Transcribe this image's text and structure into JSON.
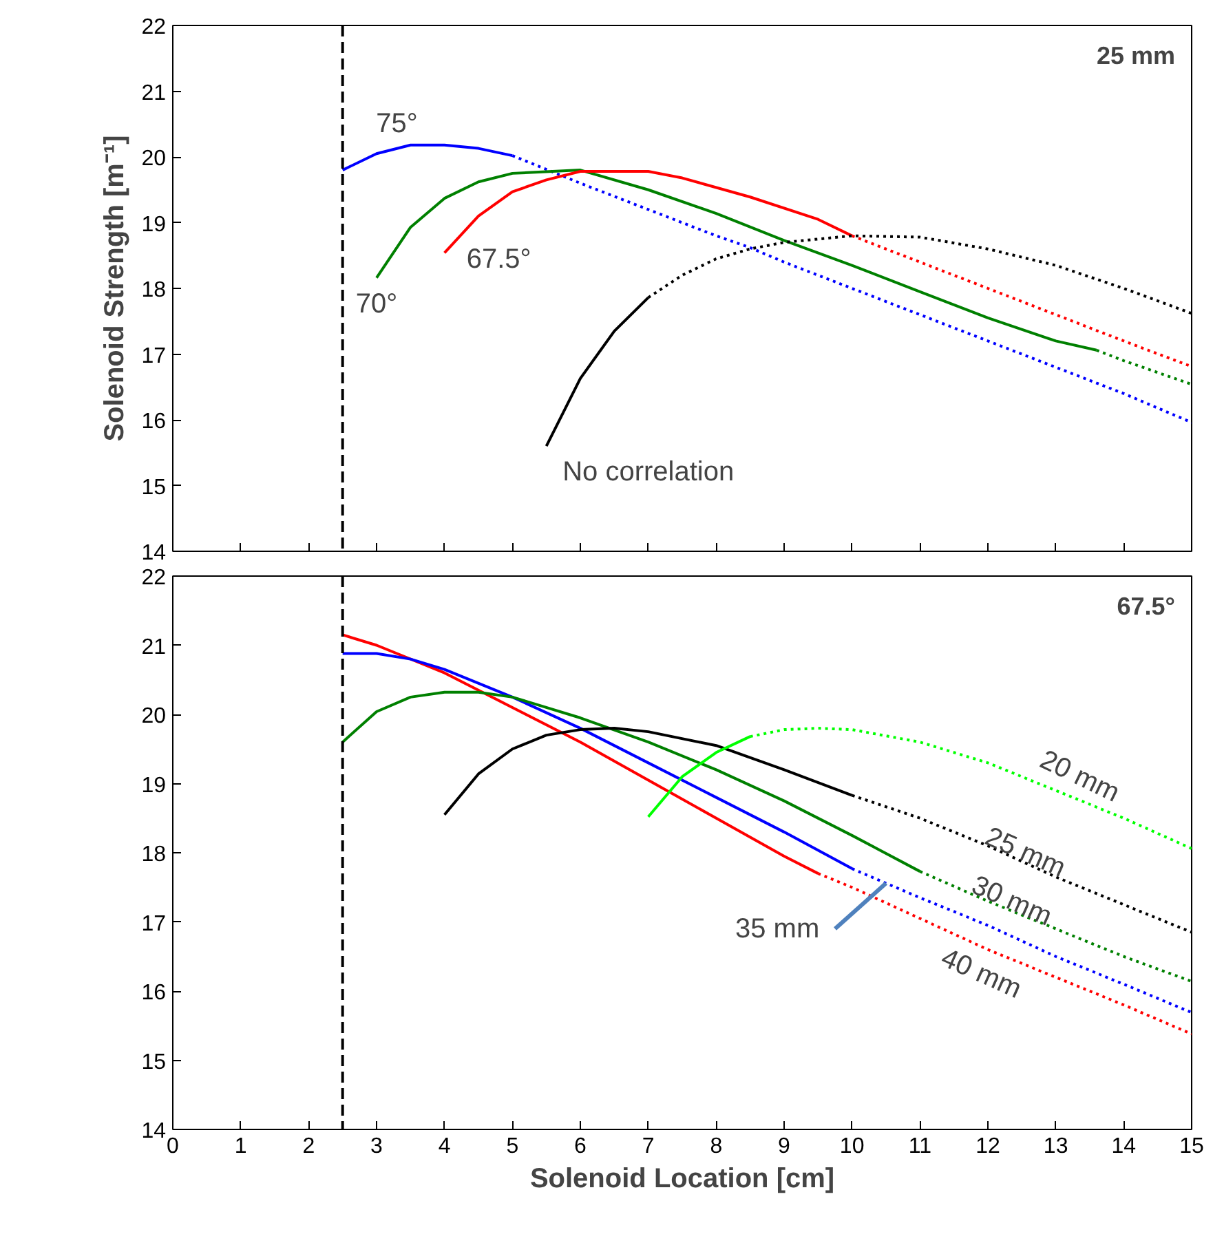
{
  "chart_data": [
    {
      "type": "line",
      "title": "25 mm",
      "ylabel": "Solenoid Strength [m⁻¹]",
      "xlim": [
        0,
        15
      ],
      "ylim": [
        14,
        22
      ],
      "xticks": [
        0,
        1,
        2,
        3,
        4,
        5,
        6,
        7,
        8,
        9,
        10,
        11,
        12,
        13,
        14,
        15
      ],
      "yticks": [
        14,
        15,
        16,
        17,
        18,
        19,
        20,
        21,
        22
      ],
      "tick_labels": "y",
      "grid": false,
      "legend": false,
      "ref_lines": [
        {
          "axis": "x",
          "value": 2.5,
          "color": "#000000",
          "line_style": "dashed"
        }
      ],
      "series": [
        {
          "name": "75°",
          "color": "#0000ff",
          "line_style": "solid",
          "x": [
            2.5,
            3,
            3.5,
            4,
            4.5,
            5
          ],
          "values": [
            19.8,
            20.05,
            20.18,
            20.18,
            20.13,
            20.02
          ]
        },
        {
          "color": "#0000ff",
          "line_style": "dotted",
          "x": [
            5,
            6,
            7,
            8,
            8.5,
            9,
            10,
            11,
            12,
            13,
            14,
            15
          ],
          "values": [
            20.02,
            19.6,
            19.2,
            18.8,
            18.62,
            18.4,
            18.0,
            17.6,
            17.2,
            16.8,
            16.4,
            15.96
          ]
        },
        {
          "name": "70°",
          "color": "#008000",
          "line_style": "solid",
          "x": [
            3,
            3.5,
            4,
            4.5,
            5,
            6,
            7,
            8,
            9,
            10,
            11,
            12,
            13,
            13.6
          ],
          "values": [
            18.16,
            18.93,
            19.37,
            19.62,
            19.75,
            19.8,
            19.5,
            19.14,
            18.73,
            18.35,
            17.95,
            17.55,
            17.2,
            17.06
          ]
        },
        {
          "color": "#008000",
          "line_style": "dotted",
          "x": [
            13.6,
            14,
            15
          ],
          "values": [
            17.06,
            16.9,
            16.54
          ]
        },
        {
          "name": "67.5°",
          "color": "#ff0000",
          "line_style": "solid",
          "x": [
            4,
            4.5,
            5,
            5.5,
            6,
            7,
            7.5,
            8.5,
            9.5,
            10
          ],
          "values": [
            18.54,
            19.1,
            19.47,
            19.65,
            19.78,
            19.78,
            19.68,
            19.39,
            19.05,
            18.8
          ]
        },
        {
          "color": "#ff0000",
          "line_style": "dotted",
          "x": [
            10,
            11,
            12,
            13,
            14,
            15
          ],
          "values": [
            18.8,
            18.4,
            18.0,
            17.6,
            17.2,
            16.81
          ]
        },
        {
          "name": "No correlation",
          "color": "#000000",
          "line_style": "solid",
          "x": [
            5.5,
            6,
            6.5,
            7
          ],
          "values": [
            15.6,
            16.63,
            17.35,
            17.86
          ]
        },
        {
          "color": "#000000",
          "line_style": "dotted",
          "x": [
            7,
            7.5,
            8,
            8.5,
            9,
            10,
            11,
            12,
            13,
            14,
            15
          ],
          "values": [
            17.86,
            18.2,
            18.45,
            18.6,
            18.7,
            18.8,
            18.78,
            18.6,
            18.35,
            18.0,
            17.62
          ]
        }
      ]
    },
    {
      "type": "line",
      "title": "67.5°",
      "xlabel": "Solenoid Location [cm]",
      "xlim": [
        0,
        15
      ],
      "ylim": [
        14,
        22
      ],
      "xticks": [
        0,
        1,
        2,
        3,
        4,
        5,
        6,
        7,
        8,
        9,
        10,
        11,
        12,
        13,
        14,
        15
      ],
      "yticks": [
        14,
        15,
        16,
        17,
        18,
        19,
        20,
        21,
        22
      ],
      "grid": false,
      "legend": false,
      "ref_lines": [
        {
          "axis": "x",
          "value": 2.5,
          "color": "#000000",
          "line_style": "dashed"
        }
      ],
      "series": [
        {
          "color": "#ff0000",
          "line_style": "solid",
          "x": [
            2.5,
            3,
            4,
            5,
            6,
            7,
            8,
            9,
            9.5
          ],
          "values": [
            21.15,
            21.0,
            20.6,
            20.1,
            19.6,
            19.05,
            18.5,
            17.95,
            17.7
          ]
        },
        {
          "name": "40 mm",
          "color": "#ff0000",
          "line_style": "dotted",
          "x": [
            9.5,
            10,
            11,
            12,
            13,
            14,
            15
          ],
          "values": [
            17.7,
            17.5,
            17.05,
            16.6,
            16.2,
            15.8,
            15.38
          ]
        },
        {
          "color": "#0000ff",
          "line_style": "solid",
          "x": [
            2.5,
            3,
            3.5,
            4,
            5,
            6,
            7,
            8,
            9,
            10
          ],
          "values": [
            20.88,
            20.88,
            20.8,
            20.65,
            20.25,
            19.8,
            19.3,
            18.8,
            18.3,
            17.77
          ]
        },
        {
          "name": "35 mm",
          "color": "#0000ff",
          "line_style": "dotted",
          "x": [
            10,
            10.5,
            11,
            12,
            13,
            14,
            15
          ],
          "values": [
            17.77,
            17.56,
            17.35,
            16.95,
            16.5,
            16.1,
            15.69
          ]
        },
        {
          "color": "#008000",
          "line_style": "solid",
          "x": [
            2.5,
            3,
            3.5,
            4,
            4.5,
            5,
            6,
            7,
            8,
            9,
            10,
            11
          ],
          "values": [
            19.6,
            20.04,
            20.25,
            20.32,
            20.32,
            20.25,
            19.95,
            19.6,
            19.2,
            18.75,
            18.25,
            17.73
          ]
        },
        {
          "name": "30 mm",
          "color": "#008000",
          "line_style": "dotted",
          "x": [
            11,
            12,
            13,
            14,
            15
          ],
          "values": [
            17.73,
            17.3,
            16.9,
            16.5,
            16.14
          ]
        },
        {
          "color": "#000000",
          "line_style": "solid",
          "x": [
            4,
            4.5,
            5,
            5.5,
            6,
            6.5,
            7,
            8,
            9,
            10
          ],
          "values": [
            18.55,
            19.14,
            19.5,
            19.7,
            19.78,
            19.8,
            19.75,
            19.55,
            19.2,
            18.83
          ]
        },
        {
          "name": "25 mm",
          "color": "#000000",
          "line_style": "dotted",
          "x": [
            10,
            11,
            12,
            13,
            14,
            15
          ],
          "values": [
            18.83,
            18.5,
            18.1,
            17.65,
            17.25,
            16.85
          ]
        },
        {
          "color": "#00ff00",
          "line_style": "solid",
          "x": [
            7,
            7.5,
            8,
            8.5
          ],
          "values": [
            18.52,
            19.1,
            19.45,
            19.68
          ]
        },
        {
          "name": "20 mm",
          "color": "#00ff00",
          "line_style": "dotted",
          "x": [
            8.5,
            9,
            9.5,
            10,
            11,
            12,
            13,
            14,
            15
          ],
          "values": [
            19.68,
            19.78,
            19.8,
            19.78,
            19.6,
            19.3,
            18.9,
            18.5,
            18.06
          ]
        }
      ]
    }
  ]
}
